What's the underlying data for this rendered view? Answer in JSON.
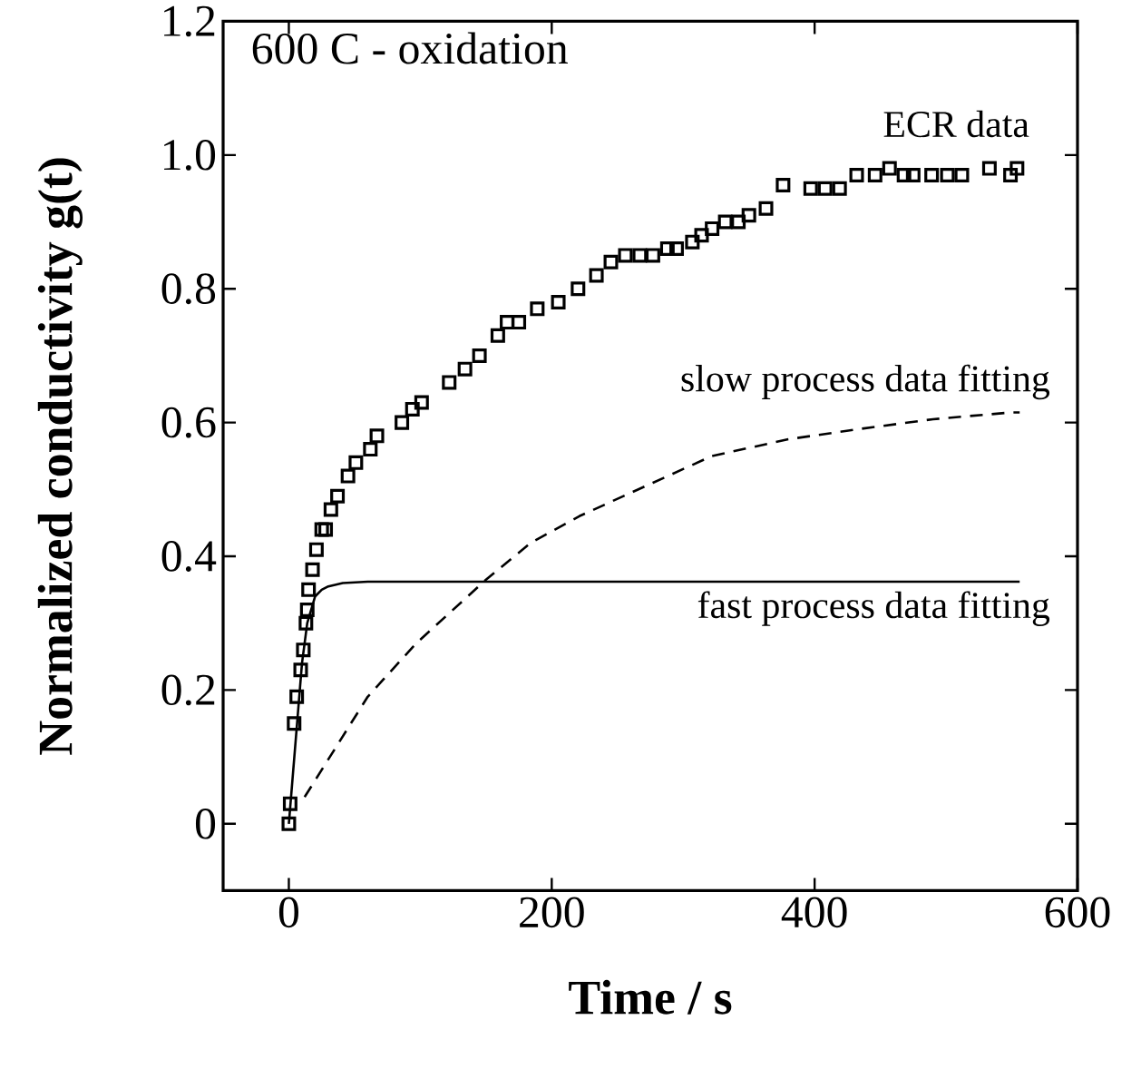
{
  "chart_data": {
    "type": "scatter",
    "xlabel": "Time / s",
    "ylabel": "Normalized conductivity g(t)",
    "annotations": [
      "600 C - oxidation"
    ],
    "xlim": [
      -50,
      600
    ],
    "xticks": [
      0,
      200,
      400,
      600
    ],
    "ylim": [
      -0.1,
      1.2
    ],
    "yticks": [
      0,
      {
        "value": 0.2,
        "label": "0.2"
      },
      {
        "value": 0.4,
        "label": "0.4"
      },
      {
        "value": 0.6,
        "label": "0.6"
      },
      {
        "value": 0.8,
        "label": "0.8"
      },
      {
        "value": 1,
        "label": "1.0"
      },
      {
        "value": 1.2,
        "label": "1.2"
      }
    ],
    "grid": false,
    "legend": "right",
    "series": [
      {
        "name": "ECR data",
        "marker": "square",
        "color": "#000000",
        "x": [
          0,
          1,
          4,
          6,
          9,
          11,
          13,
          14,
          15,
          18,
          21,
          25,
          28,
          32,
          37,
          45,
          51,
          62,
          67,
          86,
          94,
          101,
          122,
          134,
          145,
          159,
          166,
          175,
          189,
          205,
          220,
          234,
          245,
          256,
          267,
          277,
          288,
          295,
          307,
          314,
          322,
          332,
          342,
          350,
          363,
          376,
          397,
          408,
          419,
          432,
          446,
          457,
          468,
          475,
          489,
          501,
          512,
          533,
          549,
          554
        ],
        "values": [
          0.0,
          0.03,
          0.15,
          0.19,
          0.23,
          0.26,
          0.3,
          0.32,
          0.35,
          0.38,
          0.41,
          0.44,
          0.44,
          0.47,
          0.49,
          0.52,
          0.54,
          0.56,
          0.58,
          0.6,
          0.62,
          0.63,
          0.66,
          0.68,
          0.7,
          0.73,
          0.75,
          0.75,
          0.77,
          0.78,
          0.8,
          0.82,
          0.84,
          0.85,
          0.85,
          0.85,
          0.86,
          0.86,
          0.87,
          0.88,
          0.89,
          0.9,
          0.9,
          0.91,
          0.92,
          0.955,
          0.95,
          0.95,
          0.95,
          0.97,
          0.97,
          0.98,
          0.97,
          0.97,
          0.97,
          0.97,
          0.97,
          0.98,
          0.97,
          0.98
        ]
      },
      {
        "name": "slow process data fitting",
        "type": "line",
        "marker": "none",
        "line_style": "dashed",
        "color": "#000000",
        "x": [
          12,
          28,
          60,
          97,
          150,
          184,
          221,
          277,
          322,
          380,
          433,
          490,
          549,
          556
        ],
        "values": [
          0.04,
          0.09,
          0.19,
          0.27,
          0.365,
          0.42,
          0.46,
          0.51,
          0.55,
          0.575,
          0.59,
          0.605,
          0.615,
          0.615
        ]
      },
      {
        "name": "fast process data fitting",
        "type": "line",
        "marker": "none",
        "line_style": "solid",
        "color": "#000000",
        "x": [
          0,
          5,
          10,
          14,
          20,
          25,
          30,
          41,
          60,
          556
        ],
        "values": [
          0,
          0.12,
          0.24,
          0.3,
          0.34,
          0.35,
          0.355,
          0.36,
          0.362,
          0.362
        ]
      }
    ]
  }
}
